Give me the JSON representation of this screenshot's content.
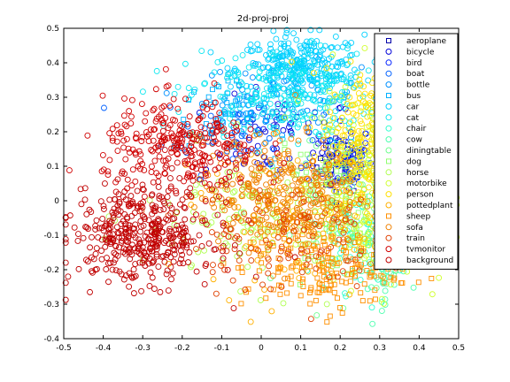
{
  "chart_data": {
    "type": "scatter",
    "title": "2d-proj-proj",
    "xlabel": "",
    "ylabel": "",
    "xlim": [
      -0.5,
      0.5
    ],
    "ylim": [
      -0.4,
      0.5
    ],
    "xticks": [
      "-0.5",
      "-0.4",
      "-0.3",
      "-0.2",
      "-0.1",
      "0",
      "0.1",
      "0.2",
      "0.3",
      "0.4",
      "0.5"
    ],
    "yticks": [
      "-0.4",
      "-0.3",
      "-0.2",
      "-0.1",
      "0",
      "0.1",
      "0.2",
      "0.3",
      "0.4",
      "0.5"
    ],
    "grid": false,
    "legend_position": "top-right",
    "series": [
      {
        "name": "aeroplane",
        "color": "#0000a8",
        "marker": "square",
        "center": [
          0.2,
          0.1
        ],
        "spread": [
          0.03,
          0.04
        ],
        "count": 40
      },
      {
        "name": "bicycle",
        "color": "#0000d8",
        "marker": "circle",
        "center": [
          0.05,
          0.18
        ],
        "spread": [
          0.1,
          0.06
        ],
        "count": 70
      },
      {
        "name": "bird",
        "color": "#0020ff",
        "marker": "circle",
        "center": [
          0.22,
          0.12
        ],
        "spread": [
          0.03,
          0.05
        ],
        "count": 60
      },
      {
        "name": "boat",
        "color": "#0060ff",
        "marker": "circle",
        "center": [
          -0.05,
          0.2
        ],
        "spread": [
          0.1,
          0.06
        ],
        "count": 60
      },
      {
        "name": "bottle",
        "color": "#0090ff",
        "marker": "circle",
        "center": [
          0.05,
          0.3
        ],
        "spread": [
          0.1,
          0.05
        ],
        "count": 70
      },
      {
        "name": "bus",
        "color": "#00b0ff",
        "marker": "square",
        "center": [
          -0.1,
          0.25
        ],
        "spread": [
          0.06,
          0.05
        ],
        "count": 50
      },
      {
        "name": "car",
        "color": "#00d0ff",
        "marker": "circle",
        "center": [
          0.1,
          0.38
        ],
        "spread": [
          0.08,
          0.05
        ],
        "count": 300
      },
      {
        "name": "cat",
        "color": "#10e8f0",
        "marker": "circle",
        "center": [
          0.05,
          0.3
        ],
        "spread": [
          0.12,
          0.07
        ],
        "count": 220
      },
      {
        "name": "chair",
        "color": "#30ffd0",
        "marker": "circle",
        "center": [
          0.25,
          -0.1
        ],
        "spread": [
          0.06,
          0.08
        ],
        "count": 90
      },
      {
        "name": "cow",
        "color": "#50ffb0",
        "marker": "circle",
        "center": [
          0.3,
          -0.2
        ],
        "spread": [
          0.04,
          0.05
        ],
        "count": 50
      },
      {
        "name": "diningtable",
        "color": "#70ff90",
        "marker": "circle",
        "center": [
          0.25,
          -0.05
        ],
        "spread": [
          0.08,
          0.1
        ],
        "count": 80
      },
      {
        "name": "dog",
        "color": "#90ff70",
        "marker": "square",
        "center": [
          0.2,
          0.05
        ],
        "spread": [
          0.08,
          0.1
        ],
        "count": 80
      },
      {
        "name": "horse",
        "color": "#b0ff50",
        "marker": "circle",
        "center": [
          0.0,
          -0.05
        ],
        "spread": [
          0.15,
          0.1
        ],
        "count": 160
      },
      {
        "name": "motorbike",
        "color": "#d0ff30",
        "marker": "circle",
        "center": [
          0.3,
          0.05
        ],
        "spread": [
          0.08,
          0.15
        ],
        "count": 260
      },
      {
        "name": "person",
        "color": "#ffe000",
        "marker": "circle",
        "center": [
          0.28,
          0.15
        ],
        "spread": [
          0.06,
          0.12
        ],
        "count": 280
      },
      {
        "name": "pottedplant",
        "color": "#ffb000",
        "marker": "circle",
        "center": [
          0.1,
          -0.05
        ],
        "spread": [
          0.12,
          0.1
        ],
        "count": 140
      },
      {
        "name": "sheep",
        "color": "#ff9000",
        "marker": "square",
        "center": [
          0.15,
          -0.2
        ],
        "spread": [
          0.1,
          0.06
        ],
        "count": 160
      },
      {
        "name": "sofa",
        "color": "#f08000",
        "marker": "circle",
        "center": [
          0.05,
          0.02
        ],
        "spread": [
          0.1,
          0.08
        ],
        "count": 320
      },
      {
        "name": "train",
        "color": "#e04000",
        "marker": "circle",
        "center": [
          0.05,
          -0.1
        ],
        "spread": [
          0.12,
          0.08
        ],
        "count": 120
      },
      {
        "name": "tvmonitor",
        "color": "#d00000",
        "marker": "circle",
        "center": [
          -0.2,
          0.15
        ],
        "spread": [
          0.1,
          0.07
        ],
        "count": 300
      },
      {
        "name": "background",
        "color": "#c00000",
        "marker": "circle",
        "center": [
          -0.3,
          -0.1
        ],
        "spread": [
          0.09,
          0.07
        ],
        "count": 420
      }
    ]
  }
}
